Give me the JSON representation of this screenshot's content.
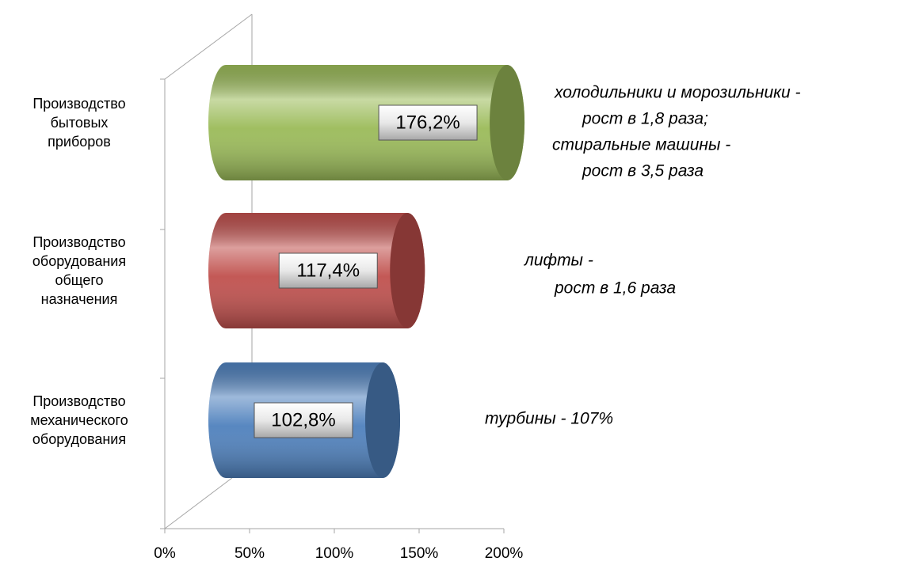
{
  "chart_data": {
    "type": "bar",
    "orientation": "horizontal",
    "categories": [
      "Производство бытовых приборов",
      "Производство оборудования общего назначения",
      "Производство механического оборудования"
    ],
    "values": [
      176.2,
      117.4,
      102.8
    ],
    "value_labels": [
      "176,2%",
      "117,4%",
      "102,8%"
    ],
    "colors": [
      "#9bbb59",
      "#c0504d",
      "#4f81bd"
    ],
    "xlim": [
      0,
      200
    ],
    "xticks": [
      {
        "value": 0,
        "label": "0%"
      },
      {
        "value": 50,
        "label": "50%"
      },
      {
        "value": 100,
        "label": "100%"
      },
      {
        "value": 150,
        "label": "150%"
      },
      {
        "value": 200,
        "label": "200%"
      }
    ],
    "annotations": [
      [
        "холодильники и морозильники -",
        "рост в 1,8 раза;",
        "стиральные машины -",
        "рост в 3,5 раза"
      ],
      [
        "лифты -",
        "рост в 1,6 раза"
      ],
      [
        "турбины - 107%"
      ]
    ]
  }
}
